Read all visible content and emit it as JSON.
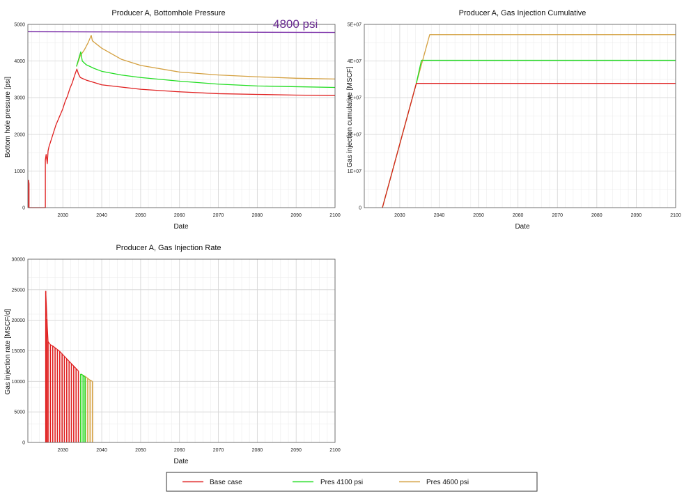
{
  "chart_data": [
    {
      "id": "bhp",
      "type": "line",
      "title": "Producer A, Bottomhole Pressure",
      "xlabel": "Date",
      "ylabel": "Bottom hole pressure [psi]",
      "xlim": [
        2021,
        2100
      ],
      "ylim": [
        0,
        5000
      ],
      "xticks": [
        "2030",
        "2040",
        "2050",
        "2060",
        "2070",
        "2080",
        "2090",
        "2100"
      ],
      "yticks": [
        "0",
        "1000",
        "2000",
        "3000",
        "4000",
        "5000"
      ],
      "grid": true,
      "annotation": {
        "text": "4800 psi",
        "color": "#6a2c91"
      },
      "series": [
        {
          "name": "4800 psi",
          "color": "#7a2fa8",
          "x": [
            2021,
            2100
          ],
          "y": [
            4800,
            4780
          ]
        },
        {
          "name": "Pres 4600 psi",
          "color": "#d4a040",
          "x": [
            2033.5,
            2034.5,
            2035.5,
            2036.5,
            2037.3,
            2037.6,
            2040,
            2045,
            2050,
            2060,
            2070,
            2080,
            2090,
            2100
          ],
          "y": [
            3850,
            4150,
            4300,
            4500,
            4700,
            4550,
            4350,
            4050,
            3880,
            3700,
            3620,
            3570,
            3530,
            3510
          ]
        },
        {
          "name": "Pres 4100 psi",
          "color": "#22dd22",
          "x": [
            2033.5,
            2034.6,
            2035.0,
            2036,
            2038,
            2040,
            2045,
            2050,
            2060,
            2070,
            2080,
            2090,
            2100
          ],
          "y": [
            3850,
            4250,
            4000,
            3900,
            3800,
            3720,
            3620,
            3550,
            3450,
            3370,
            3320,
            3300,
            3280
          ]
        },
        {
          "name": "Base case",
          "color": "#e02020",
          "x": [
            2021.2,
            2021.2,
            2021.3,
            2021.3,
            2021.4,
            2025.5,
            2025.5,
            2025.7,
            2026.0,
            2026.2,
            2026.4,
            2027,
            2027.6,
            2028.2,
            2028.8,
            2029.4,
            2030,
            2030.6,
            2031.2,
            2031.8,
            2032.4,
            2033.0,
            2033.6,
            2034.0,
            2034.5,
            2036,
            2040,
            2050,
            2060,
            2070,
            2080,
            2090,
            2100
          ],
          "y": [
            0,
            750,
            650,
            0,
            0,
            0,
            1300,
            1450,
            1200,
            1550,
            1650,
            1850,
            2050,
            2250,
            2400,
            2550,
            2700,
            2900,
            3050,
            3250,
            3400,
            3600,
            3780,
            3650,
            3550,
            3480,
            3350,
            3230,
            3160,
            3110,
            3090,
            3070,
            3060
          ]
        }
      ]
    },
    {
      "id": "cum",
      "type": "line",
      "title": "Producer A, Gas Injection Cumulative",
      "xlabel": "Date",
      "ylabel": "Gas injection cumulative [MSCF]",
      "xlim": [
        2021,
        2100
      ],
      "ylim": [
        0,
        50000000
      ],
      "xticks": [
        "2030",
        "2040",
        "2050",
        "2060",
        "2070",
        "2080",
        "2090",
        "2100"
      ],
      "yticks": [
        "0",
        "1E+07",
        "2E+07",
        "3E+07",
        "4E+07",
        "5E+07"
      ],
      "grid": true,
      "series": [
        {
          "name": "Pres 4600 psi",
          "color": "#d4a040",
          "x": [
            2025.6,
            2034.2,
            2037.6,
            2100
          ],
          "y": [
            0,
            33900000,
            47200000,
            47200000
          ]
        },
        {
          "name": "Pres 4100 psi",
          "color": "#22dd22",
          "x": [
            2025.6,
            2034.2,
            2035.5,
            2100
          ],
          "y": [
            0,
            33900000,
            40200000,
            40200000
          ]
        },
        {
          "name": "Base case",
          "color": "#e02020",
          "x": [
            2025.6,
            2034.2,
            2100
          ],
          "y": [
            0,
            33900000,
            33900000
          ]
        }
      ]
    },
    {
      "id": "rate",
      "type": "bar",
      "title": "Producer A, Gas Injection Rate",
      "xlabel": "Date",
      "ylabel": "Gas injection rate [MSCF/d]",
      "xlim": [
        2021,
        2100
      ],
      "ylim": [
        0,
        30000
      ],
      "xticks": [
        "2030",
        "2040",
        "2050",
        "2060",
        "2070",
        "2080",
        "2090",
        "2100"
      ],
      "yticks": [
        "0",
        "5000",
        "10000",
        "15000",
        "20000",
        "25000",
        "30000"
      ],
      "grid": true,
      "series": [
        {
          "name": "Pres 4600 psi",
          "color": "#d4a040",
          "x": [
            2034.6,
            2035.2,
            2035.8,
            2036.4,
            2037.0,
            2037.6
          ],
          "values": [
            11200,
            11000,
            10800,
            10500,
            10200,
            10000
          ]
        },
        {
          "name": "Pres 4100 psi",
          "color": "#22dd22",
          "x": [
            2034.6,
            2035.2,
            2035.7
          ],
          "values": [
            11200,
            11000,
            10700
          ]
        },
        {
          "name": "Base case",
          "color": "#e02020",
          "x": [
            2025.6,
            2025.9,
            2026.2,
            2026.8,
            2027.4,
            2028.0,
            2028.6,
            2029.2,
            2029.8,
            2030.4,
            2031.0,
            2031.6,
            2032.2,
            2032.8,
            2033.4,
            2034.0
          ],
          "values": [
            24800,
            20200,
            16500,
            16000,
            15800,
            15500,
            15200,
            14900,
            14500,
            14100,
            13700,
            13300,
            12900,
            12500,
            12100,
            11700
          ]
        }
      ]
    }
  ],
  "legend": {
    "placement": "bottom-center",
    "items": [
      {
        "name": "Base case",
        "color": "#e02020"
      },
      {
        "name": "Pres 4100 psi",
        "color": "#22dd22"
      },
      {
        "name": "Pres 4600 psi",
        "color": "#d4a040"
      }
    ]
  }
}
